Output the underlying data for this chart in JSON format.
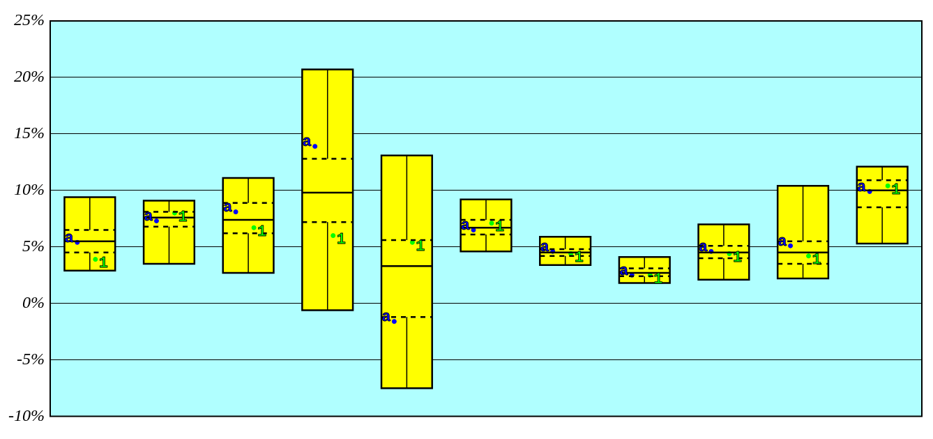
{
  "chart_data": {
    "type": "box",
    "categories": [
      null,
      null,
      null,
      null,
      null,
      null,
      null,
      null,
      null,
      null,
      null
    ],
    "boxes": [
      {
        "low": 2.9,
        "q1": 4.5,
        "median": 5.5,
        "q3": 6.5,
        "high": 9.4
      },
      {
        "low": 3.5,
        "q1": 6.8,
        "median": 7.6,
        "q3": 8.1,
        "high": 9.1
      },
      {
        "low": 2.7,
        "q1": 6.2,
        "median": 7.4,
        "q3": 8.9,
        "high": 11.1
      },
      {
        "low": -0.6,
        "q1": 7.2,
        "median": 9.8,
        "q3": 12.8,
        "high": 20.7
      },
      {
        "low": -7.5,
        "q1": -1.2,
        "median": 3.3,
        "q3": 5.6,
        "high": 13.1
      },
      {
        "low": 4.6,
        "q1": 6.1,
        "median": 6.7,
        "q3": 7.4,
        "high": 9.2
      },
      {
        "low": 3.4,
        "q1": 4.2,
        "median": 4.5,
        "q3": 4.8,
        "high": 5.9
      },
      {
        "low": 1.8,
        "q1": 2.4,
        "median": 2.7,
        "q3": 3.1,
        "high": 4.1
      },
      {
        "low": 2.1,
        "q1": 4.0,
        "median": 4.5,
        "q3": 5.1,
        "high": 7.0
      },
      {
        "low": 2.2,
        "q1": 3.5,
        "median": 4.5,
        "q3": 5.5,
        "high": 10.4
      },
      {
        "low": 5.3,
        "q1": 8.5,
        "median": 10.0,
        "q3": 10.9,
        "high": 12.1
      }
    ],
    "color": "#ffff00",
    "series": [
      {
        "type": "scatter",
        "name": "a",
        "color": "#0000ff",
        "values": [
          5.4,
          7.3,
          8.1,
          13.9,
          -1.6,
          6.5,
          4.6,
          2.5,
          4.6,
          5.1,
          9.9
        ]
      },
      {
        "type": "scatter",
        "name": "1",
        "color": "#00ff00",
        "values": [
          3.9,
          8.0,
          6.7,
          6.0,
          5.4,
          7.1,
          4.4,
          2.5,
          4.4,
          4.2,
          10.4
        ]
      }
    ],
    "marker": "circle",
    "ylim": [
      -10,
      25
    ],
    "yticks": [
      {
        "value": -10,
        "label": "-10%"
      },
      {
        "value": -5,
        "label": "-5%"
      },
      {
        "value": 0,
        "label": "0%"
      },
      {
        "value": 5,
        "label": "5%"
      },
      {
        "value": 10,
        "label": "10%"
      },
      {
        "value": 15,
        "label": "15%"
      },
      {
        "value": 20,
        "label": "20%"
      },
      {
        "value": 25,
        "label": "25%"
      }
    ],
    "grid": "y",
    "legend": false
  }
}
